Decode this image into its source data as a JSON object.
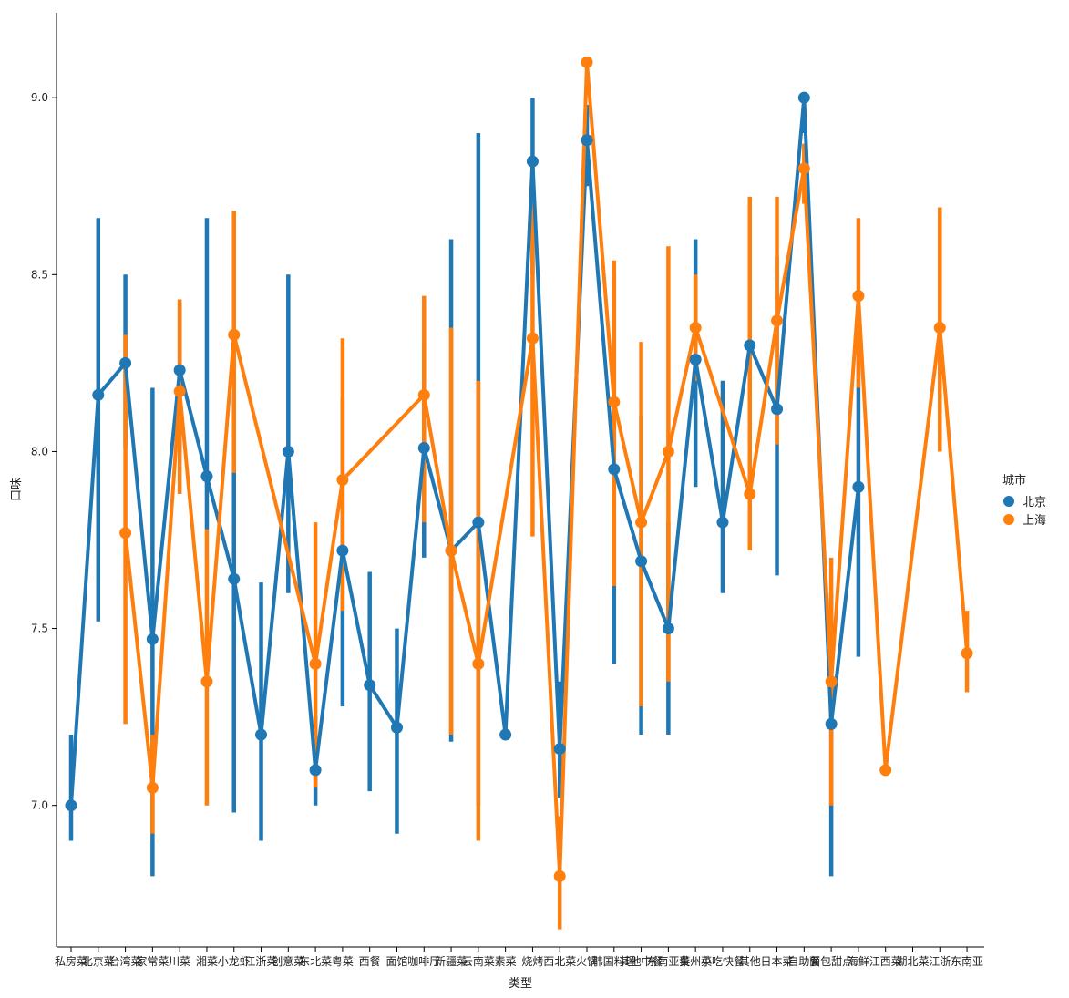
{
  "chart_data": {
    "type": "line",
    "xlabel": "类型",
    "ylabel": "口味",
    "ylim": [
      6.6,
      9.24
    ],
    "yticks": [
      "7.0",
      "7.5",
      "8.0",
      "8.5",
      "9.0"
    ],
    "categories": [
      "私房菜",
      "北京菜",
      "台湾菜",
      "家常菜",
      "川菜",
      "湘菜",
      "小龙虾",
      "江浙菜",
      "创意菜",
      "东北菜",
      "粤菜",
      "西餐",
      "面馆",
      "咖啡厅",
      "新疆菜",
      "云南菜",
      "素菜",
      "烧烤",
      "西北菜",
      "火锅",
      "韩国料理",
      "其他中餐",
      "东南亚菜",
      "贵州菜",
      "小吃快餐",
      "其他",
      "日本菜",
      "自助餐",
      "面包甜点",
      "海鲜",
      "江西菜",
      "湖北菜",
      "江浙",
      "东南亚"
    ],
    "legend": {
      "title": "城市",
      "position": "right"
    },
    "series": [
      {
        "name": "北京",
        "color": "#1f77b4",
        "values": [
          7.0,
          8.16,
          8.25,
          7.47,
          8.23,
          7.93,
          7.64,
          7.2,
          8.0,
          7.1,
          7.72,
          7.34,
          7.22,
          8.01,
          7.72,
          7.8,
          7.2,
          8.82,
          7.16,
          8.88,
          7.95,
          7.69,
          7.5,
          8.26,
          7.8,
          8.3,
          8.12,
          9.0,
          7.23,
          7.9,
          null,
          null,
          null,
          null
        ],
        "ci_low": [
          6.9,
          7.52,
          8.01,
          6.8,
          8.0,
          7.78,
          6.98,
          6.9,
          7.6,
          7.0,
          7.28,
          7.04,
          6.92,
          7.7,
          7.18,
          7.0,
          null,
          8.5,
          7.02,
          8.75,
          7.4,
          7.2,
          7.2,
          7.9,
          7.6,
          8.02,
          7.65,
          8.9,
          6.8,
          7.42,
          null,
          null,
          null,
          null
        ],
        "ci_high": [
          7.2,
          8.66,
          8.5,
          8.18,
          8.42,
          8.66,
          8.22,
          7.63,
          8.5,
          7.25,
          8.15,
          7.66,
          7.5,
          8.3,
          8.6,
          8.9,
          null,
          9.0,
          7.35,
          8.98,
          8.5,
          8.1,
          7.8,
          8.6,
          8.2,
          8.58,
          8.55,
          9.0,
          7.6,
          8.3,
          null,
          null,
          null,
          null
        ]
      },
      {
        "name": "上海",
        "color": "#ff7f0e",
        "values": [
          null,
          null,
          7.77,
          7.05,
          8.17,
          7.35,
          8.33,
          null,
          null,
          7.4,
          7.92,
          null,
          null,
          8.16,
          7.72,
          7.4,
          null,
          8.32,
          6.8,
          9.1,
          8.14,
          7.8,
          8.0,
          8.35,
          null,
          7.88,
          8.37,
          8.8,
          7.35,
          8.44,
          7.1,
          null,
          8.35,
          7.43
        ],
        "ci_low": [
          null,
          null,
          7.23,
          6.92,
          7.88,
          7.0,
          7.94,
          null,
          null,
          7.05,
          7.55,
          null,
          null,
          7.8,
          7.2,
          6.9,
          null,
          7.76,
          6.65,
          9.1,
          7.62,
          7.28,
          7.35,
          8.2,
          null,
          7.72,
          8.02,
          8.7,
          7.0,
          8.18,
          7.1,
          null,
          8.0,
          7.32
        ],
        "ci_high": [
          null,
          null,
          8.33,
          7.2,
          8.43,
          7.78,
          8.68,
          null,
          null,
          7.8,
          8.32,
          null,
          null,
          8.44,
          8.35,
          8.2,
          null,
          8.8,
          6.97,
          9.1,
          8.54,
          8.31,
          8.58,
          8.5,
          null,
          8.72,
          8.72,
          8.87,
          7.7,
          8.66,
          7.1,
          null,
          8.69,
          7.55
        ]
      }
    ]
  }
}
